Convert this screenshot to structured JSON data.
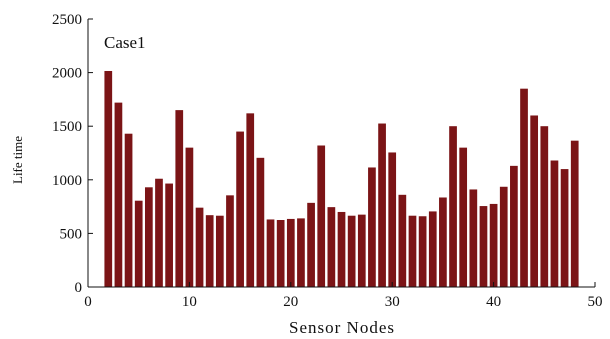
{
  "chart_data": {
    "type": "bar",
    "annotation": "Case1",
    "xlabel": "Sensor Nodes",
    "ylabel": "Life time",
    "xlim": [
      0,
      50
    ],
    "ylim": [
      0,
      2500
    ],
    "xticks": [
      0,
      10,
      20,
      30,
      40,
      50
    ],
    "yticks": [
      0,
      500,
      1000,
      1500,
      2000,
      2500
    ],
    "grid": false,
    "bar_color": "#7b1416",
    "x": [
      2,
      3,
      4,
      5,
      6,
      7,
      8,
      9,
      10,
      11,
      12,
      13,
      14,
      15,
      16,
      17,
      18,
      19,
      20,
      21,
      22,
      23,
      24,
      25,
      26,
      27,
      28,
      29,
      30,
      31,
      32,
      33,
      34,
      35,
      36,
      37,
      38,
      39,
      40,
      41,
      42,
      43,
      44,
      45,
      46,
      47,
      48
    ],
    "values": [
      2015,
      1720,
      1430,
      805,
      930,
      1010,
      965,
      1650,
      1300,
      740,
      670,
      665,
      855,
      1450,
      1620,
      1205,
      630,
      625,
      635,
      640,
      785,
      1320,
      745,
      700,
      665,
      675,
      1115,
      1525,
      1255,
      860,
      665,
      660,
      705,
      835,
      1500,
      1300,
      910,
      755,
      775,
      935,
      1130,
      1850,
      1600,
      1500,
      1180,
      1100,
      1365
    ]
  }
}
